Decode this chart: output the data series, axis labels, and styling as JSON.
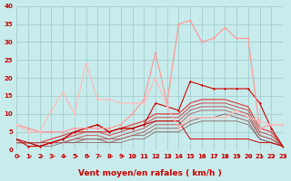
{
  "title": "",
  "xlabel": "Vent moyen/en rafales ( km/h )",
  "background_color": "#c8ecec",
  "grid_color": "#9cc8c8",
  "x_ticks": [
    0,
    1,
    2,
    3,
    4,
    5,
    6,
    7,
    8,
    9,
    10,
    11,
    12,
    13,
    14,
    15,
    16,
    17,
    18,
    19,
    20,
    21,
    22,
    23
  ],
  "ylim": [
    0,
    40
  ],
  "xlim": [
    0,
    23
  ],
  "y_ticks": [
    0,
    5,
    10,
    15,
    20,
    25,
    30,
    35,
    40
  ],
  "lines": [
    {
      "x": [
        0,
        1,
        2,
        3,
        4,
        5,
        6,
        7,
        8,
        9,
        10,
        11,
        12,
        13,
        14,
        15,
        16,
        17,
        18,
        19,
        20,
        21,
        22,
        23
      ],
      "y": [
        3,
        1,
        1,
        2,
        3,
        5,
        6,
        7,
        5,
        6,
        6,
        7,
        13,
        12,
        11,
        19,
        18,
        17,
        17,
        17,
        17,
        13,
        6,
        1
      ],
      "color": "#cc0000",
      "lw": 0.8,
      "marker": "D",
      "ms": 1.5,
      "zorder": 5
    },
    {
      "x": [
        0,
        1,
        2,
        3,
        4,
        5,
        6,
        7,
        8,
        9,
        10,
        11,
        12,
        13,
        14,
        15,
        16,
        17,
        18,
        19,
        20,
        21,
        22,
        23
      ],
      "y": [
        2,
        2,
        2,
        3,
        4,
        5,
        5,
        5,
        5,
        6,
        7,
        8,
        10,
        10,
        10,
        13,
        14,
        14,
        14,
        13,
        12,
        6,
        5,
        1
      ],
      "color": "#dd3333",
      "lw": 0.8,
      "marker": null,
      "ms": 0,
      "zorder": 4
    },
    {
      "x": [
        0,
        1,
        2,
        3,
        4,
        5,
        6,
        7,
        8,
        9,
        10,
        11,
        12,
        13,
        14,
        15,
        16,
        17,
        18,
        19,
        20,
        21,
        22,
        23
      ],
      "y": [
        2,
        2,
        2,
        2,
        3,
        4,
        5,
        5,
        4,
        5,
        6,
        7,
        9,
        9,
        9,
        12,
        13,
        13,
        13,
        12,
        11,
        5,
        4,
        1
      ],
      "color": "#cc4444",
      "lw": 0.7,
      "marker": null,
      "ms": 0,
      "zorder": 4
    },
    {
      "x": [
        0,
        1,
        2,
        3,
        4,
        5,
        6,
        7,
        8,
        9,
        10,
        11,
        12,
        13,
        14,
        15,
        16,
        17,
        18,
        19,
        20,
        21,
        22,
        23
      ],
      "y": [
        2,
        2,
        2,
        2,
        2,
        3,
        4,
        4,
        3,
        4,
        5,
        6,
        8,
        8,
        8,
        11,
        12,
        12,
        12,
        11,
        10,
        4,
        3,
        1
      ],
      "color": "#bb5555",
      "lw": 0.7,
      "marker": null,
      "ms": 0,
      "zorder": 4
    },
    {
      "x": [
        0,
        1,
        2,
        3,
        4,
        5,
        6,
        7,
        8,
        9,
        10,
        11,
        12,
        13,
        14,
        15,
        16,
        17,
        18,
        19,
        20,
        21,
        22,
        23
      ],
      "y": [
        2,
        2,
        1,
        2,
        2,
        3,
        3,
        3,
        3,
        3,
        4,
        5,
        7,
        7,
        7,
        10,
        11,
        11,
        11,
        10,
        9,
        4,
        3,
        1
      ],
      "color": "#aa6666",
      "lw": 0.7,
      "marker": null,
      "ms": 0,
      "zorder": 4
    },
    {
      "x": [
        0,
        1,
        2,
        3,
        4,
        5,
        6,
        7,
        8,
        9,
        10,
        11,
        12,
        13,
        14,
        15,
        16,
        17,
        18,
        19,
        20,
        21,
        22,
        23
      ],
      "y": [
        2,
        2,
        1,
        2,
        2,
        2,
        3,
        3,
        2,
        3,
        4,
        4,
        6,
        6,
        6,
        8,
        9,
        9,
        10,
        9,
        8,
        3,
        2,
        1
      ],
      "color": "#996666",
      "lw": 0.7,
      "marker": null,
      "ms": 0,
      "zorder": 3
    },
    {
      "x": [
        0,
        1,
        2,
        3,
        4,
        5,
        6,
        7,
        8,
        9,
        10,
        11,
        12,
        13,
        14,
        15,
        16,
        17,
        18,
        19,
        20,
        21,
        22,
        23
      ],
      "y": [
        2,
        2,
        1,
        1,
        2,
        2,
        2,
        2,
        2,
        2,
        3,
        3,
        5,
        5,
        5,
        7,
        8,
        8,
        8,
        8,
        7,
        3,
        2,
        1
      ],
      "color": "#886666",
      "lw": 0.6,
      "marker": null,
      "ms": 0,
      "zorder": 3
    },
    {
      "x": [
        0,
        1,
        2,
        3,
        4,
        5,
        6,
        7,
        8,
        9,
        10,
        11,
        12,
        13,
        14,
        15,
        16,
        17,
        18,
        19,
        20,
        21,
        22,
        23
      ],
      "y": [
        7,
        6,
        5,
        5,
        5,
        6,
        6,
        6,
        6,
        7,
        10,
        14,
        27,
        13,
        35,
        36,
        30,
        31,
        34,
        31,
        31,
        6,
        7,
        7
      ],
      "color": "#ff9999",
      "lw": 0.9,
      "marker": "D",
      "ms": 1.5,
      "zorder": 6
    },
    {
      "x": [
        0,
        1,
        2,
        3,
        4,
        5,
        6,
        7,
        8,
        9,
        10,
        11,
        12,
        13,
        14,
        15,
        16,
        17,
        18,
        19,
        20,
        21,
        22,
        23
      ],
      "y": [
        7,
        5,
        5,
        11,
        16,
        10,
        24,
        14,
        14,
        13,
        13,
        13,
        20,
        12,
        6,
        9,
        9,
        9,
        9,
        11,
        9,
        8,
        7,
        7
      ],
      "color": "#ffbbbb",
      "lw": 0.9,
      "marker": "D",
      "ms": 1.5,
      "zorder": 6
    },
    {
      "x": [
        0,
        1,
        2,
        3,
        4,
        5,
        6,
        7,
        8,
        9,
        10,
        11,
        12,
        13,
        14,
        15,
        16,
        17,
        18,
        19,
        20,
        21,
        22,
        23
      ],
      "y": [
        3,
        2,
        1,
        2,
        3,
        5,
        6,
        7,
        5,
        6,
        6,
        7,
        8,
        8,
        8,
        3,
        3,
        3,
        3,
        3,
        3,
        2,
        2,
        1
      ],
      "color": "#cc0000",
      "lw": 0.7,
      "marker": null,
      "ms": 0,
      "zorder": 5
    }
  ],
  "arrow_color": "#cc0000",
  "xlabel_color": "#cc0000",
  "xlabel_fontsize": 6.5,
  "tick_fontsize": 5,
  "tick_color": "#cc0000"
}
